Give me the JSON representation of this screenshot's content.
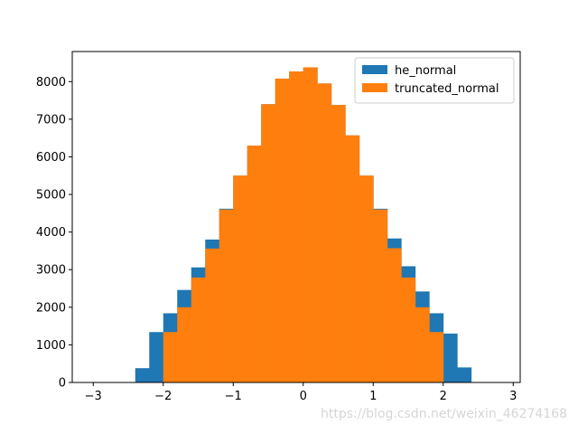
{
  "chart_data": {
    "type": "bar",
    "title": "",
    "xlabel": "",
    "ylabel": "",
    "xlim": [
      -3.3,
      3.1
    ],
    "ylim": [
      0,
      8800
    ],
    "xticks": [
      -3,
      -2,
      -1,
      0,
      1,
      2,
      3
    ],
    "xtick_labels": [
      "−3",
      "−2",
      "−1",
      "0",
      "1",
      "2",
      "3"
    ],
    "yticks": [
      0,
      1000,
      2000,
      3000,
      4000,
      5000,
      6000,
      7000,
      8000
    ],
    "ytick_labels": [
      "0",
      "1000",
      "2000",
      "3000",
      "4000",
      "5000",
      "6000",
      "7000",
      "8000"
    ],
    "grid": false,
    "legend": {
      "position": "upper-right"
    },
    "series": [
      {
        "name": "he_normal",
        "color": "#1f77b4",
        "bin_edges": [
          -2.4,
          -2.2,
          -2.0,
          -1.8,
          -1.6,
          -1.4,
          -1.2,
          -1.0,
          -0.8,
          -0.6,
          -0.4,
          -0.2,
          0.0,
          0.2,
          0.4,
          0.6,
          0.8,
          1.0,
          1.2,
          1.4,
          1.6,
          1.8,
          2.0,
          2.2,
          2.4
        ],
        "counts": [
          380,
          1340,
          1840,
          2460,
          3060,
          3800,
          4620,
          5500,
          6300,
          7400,
          8080,
          8270,
          8380,
          7950,
          7380,
          6570,
          5500,
          4620,
          3830,
          3090,
          2420,
          1840,
          1300,
          400
        ]
      },
      {
        "name": "truncated_normal",
        "color": "#ff7f0e",
        "bin_edges": [
          -2.0,
          -1.8,
          -1.6,
          -1.4,
          -1.2,
          -1.0,
          -0.8,
          -0.6,
          -0.4,
          -0.2,
          0.0,
          0.2,
          0.4,
          0.6,
          0.8,
          1.0,
          1.2,
          1.4,
          1.6,
          1.8,
          2.0
        ],
        "counts": [
          1340,
          2000,
          2790,
          3560,
          4600,
          5500,
          6300,
          7400,
          8080,
          8270,
          8380,
          7950,
          7380,
          6570,
          5500,
          4600,
          3570,
          2790,
          2000,
          1340
        ]
      }
    ]
  },
  "watermark": "https://blog.csdn.net/weixin_46274168"
}
